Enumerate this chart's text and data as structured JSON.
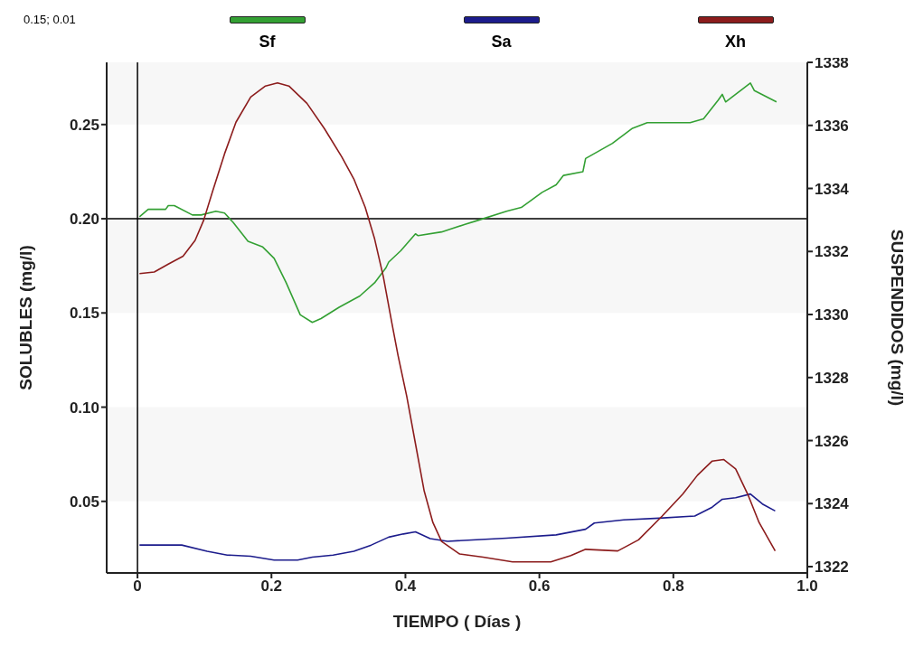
{
  "chart_data": {
    "type": "line",
    "xlabel": "TIEMPO ( Días )",
    "ylabel": "SOLUBLES (mg/l)",
    "y2label": "SUSPENDIDOS (mg/l)",
    "annotations": [
      "0.15; 0.01"
    ],
    "xlim": [
      -0.046,
      1.0
    ],
    "xticks": [
      0,
      0.2,
      0.4,
      0.6,
      0.8,
      {
        "value": 1,
        "label": "1.0"
      }
    ],
    "ylim": [
      0.012,
      0.283
    ],
    "yticks": [
      0.05,
      {
        "value": 0.1,
        "label": "0.10"
      },
      0.15,
      {
        "value": 0.2,
        "label": "0.20"
      },
      0.25
    ],
    "y2lim": [
      1321.8,
      1338
    ],
    "y2ticks": [
      1322,
      1324,
      1326,
      1328,
      1330,
      1332,
      1334,
      1336,
      1338
    ],
    "legend": "top",
    "marker": "none",
    "line_style": "solid",
    "ref_lines": [
      {
        "axis": "y",
        "value": 0.2,
        "color": "#000000"
      },
      {
        "axis": "x",
        "value": 0,
        "color": "#000000"
      }
    ],
    "bands": [
      {
        "axis": "y",
        "from": 0.05,
        "to": 0.1,
        "color": "#f7f7f7"
      },
      {
        "axis": "y",
        "from": 0.15,
        "to": 0.2,
        "color": "#f7f7f7"
      },
      {
        "axis": "y",
        "from": 0.25,
        "to": 0.283,
        "color": "#f7f7f7"
      }
    ],
    "series": [
      {
        "name": "Sf",
        "color": "#33a033",
        "x": [
          0.003,
          0.016,
          0.042,
          0.046,
          0.055,
          0.082,
          0.095,
          0.117,
          0.13,
          0.143,
          0.165,
          0.187,
          0.204,
          0.222,
          0.243,
          0.261,
          0.274,
          0.301,
          0.332,
          0.354,
          0.371,
          0.375,
          0.393,
          0.415,
          0.419,
          0.454,
          0.489,
          0.507,
          0.551,
          0.573,
          0.604,
          0.625,
          0.636,
          0.665,
          0.669,
          0.709,
          0.739,
          0.761,
          0.825,
          0.845,
          0.867,
          0.873,
          0.878,
          0.915,
          0.921,
          0.954
        ],
        "values": [
          0.201,
          0.205,
          0.205,
          0.207,
          0.207,
          0.202,
          0.202,
          0.204,
          0.203,
          0.198,
          0.188,
          0.185,
          0.179,
          0.166,
          0.149,
          0.145,
          0.147,
          0.153,
          0.159,
          0.166,
          0.174,
          0.177,
          0.183,
          0.192,
          0.191,
          0.193,
          0.197,
          0.199,
          0.204,
          0.206,
          0.214,
          0.218,
          0.223,
          0.225,
          0.232,
          0.24,
          0.248,
          0.251,
          0.251,
          0.253,
          0.263,
          0.266,
          0.262,
          0.272,
          0.268,
          0.262
        ]
      },
      {
        "name": "Sa",
        "color": "#1c1c8c",
        "x": [
          0.003,
          0.066,
          0.104,
          0.134,
          0.169,
          0.204,
          0.239,
          0.261,
          0.292,
          0.323,
          0.349,
          0.375,
          0.397,
          0.415,
          0.437,
          0.463,
          0.551,
          0.625,
          0.669,
          0.682,
          0.726,
          0.779,
          0.832,
          0.858,
          0.873,
          0.893,
          0.915,
          0.933,
          0.952
        ],
        "values": [
          0.0268,
          0.0268,
          0.0235,
          0.0215,
          0.0209,
          0.0188,
          0.0188,
          0.0204,
          0.0215,
          0.0235,
          0.0268,
          0.031,
          0.0327,
          0.0338,
          0.0302,
          0.0288,
          0.0305,
          0.0322,
          0.0352,
          0.0385,
          0.0402,
          0.0411,
          0.0422,
          0.0469,
          0.0511,
          0.0519,
          0.0539,
          0.0486,
          0.0449
        ]
      },
      {
        "name": "Xh",
        "color": "#8c1c1c",
        "axis": "y2",
        "x": [
          0.003,
          0.025,
          0.046,
          0.068,
          0.086,
          0.099,
          0.112,
          0.13,
          0.147,
          0.169,
          0.191,
          0.209,
          0.226,
          0.253,
          0.279,
          0.305,
          0.323,
          0.34,
          0.354,
          0.367,
          0.38,
          0.389,
          0.402,
          0.415,
          0.428,
          0.441,
          0.454,
          0.481,
          0.516,
          0.56,
          0.617,
          0.647,
          0.669,
          0.717,
          0.748,
          0.783,
          0.814,
          0.836,
          0.858,
          0.875,
          0.893,
          0.911,
          0.928,
          0.952
        ],
        "values": [
          1331.3,
          1331.35,
          1331.6,
          1331.85,
          1332.35,
          1333.0,
          1333.9,
          1335.1,
          1336.1,
          1336.9,
          1337.25,
          1337.35,
          1337.25,
          1336.7,
          1335.9,
          1335.0,
          1334.3,
          1333.4,
          1332.4,
          1331.2,
          1329.7,
          1328.7,
          1327.4,
          1325.9,
          1324.4,
          1323.4,
          1322.8,
          1322.4,
          1322.3,
          1322.15,
          1322.15,
          1322.35,
          1322.55,
          1322.5,
          1322.85,
          1323.6,
          1324.3,
          1324.9,
          1325.35,
          1325.4,
          1325.1,
          1324.3,
          1323.4,
          1322.5
        ]
      }
    ]
  }
}
